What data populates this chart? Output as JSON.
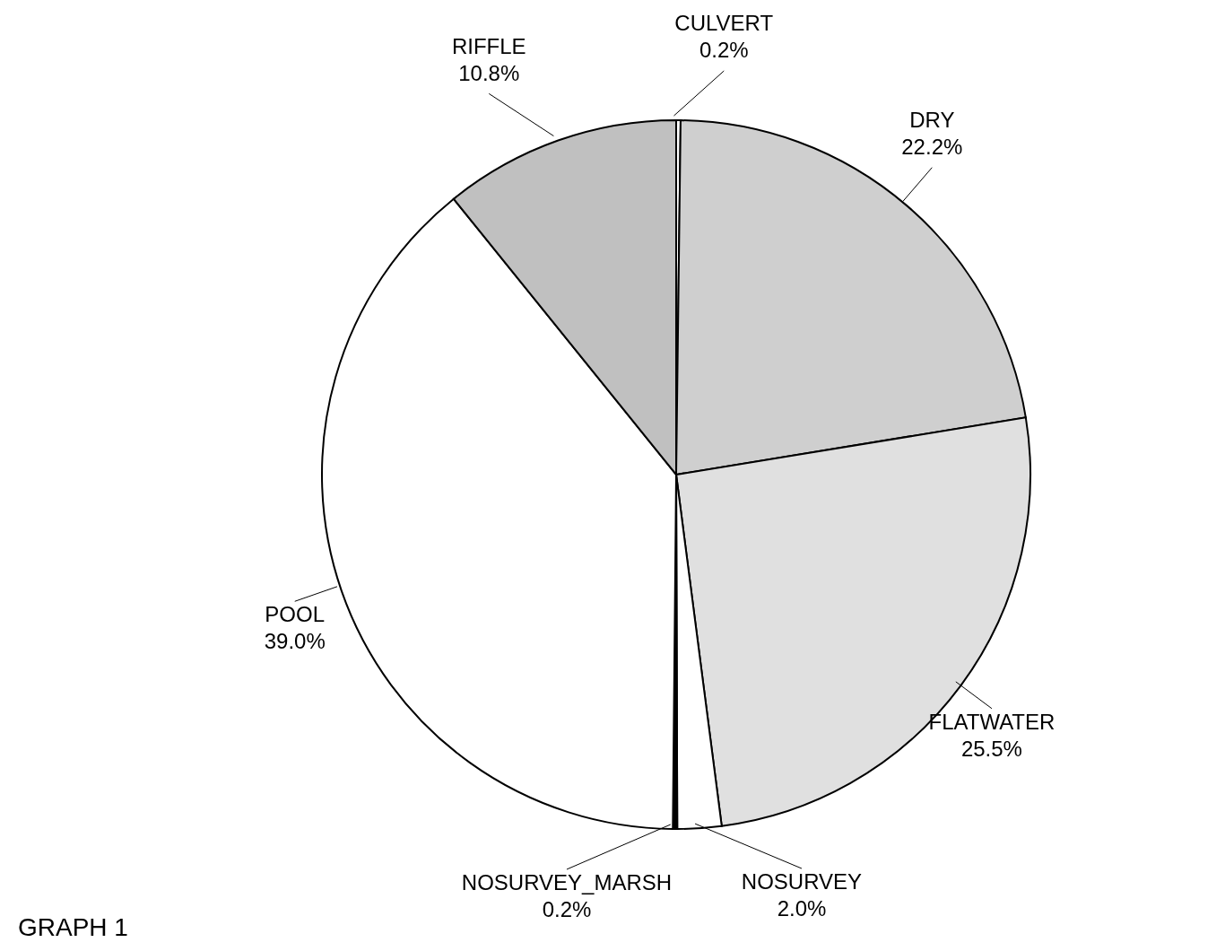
{
  "chart_data": {
    "type": "pie",
    "categories": [
      "CULVERT",
      "DRY",
      "FLATWATER",
      "NOSURVEY",
      "NOSURVEY_MARSH",
      "POOL",
      "RIFFLE"
    ],
    "values": [
      0.2,
      22.2,
      25.5,
      2.0,
      0.2,
      39.0,
      10.8
    ],
    "value_labels": [
      "0.2%",
      "22.2%",
      "25.5%",
      "2.0%",
      "0.2%",
      "39.0%",
      "10.8%"
    ],
    "colors": [
      "#ffffff",
      "#cfcfcf",
      "#e0e0e0",
      "#ffffff",
      "#000000",
      "#ffffff",
      "#c0c0c0"
    ],
    "annotations": [
      "GRAPH 1"
    ]
  }
}
